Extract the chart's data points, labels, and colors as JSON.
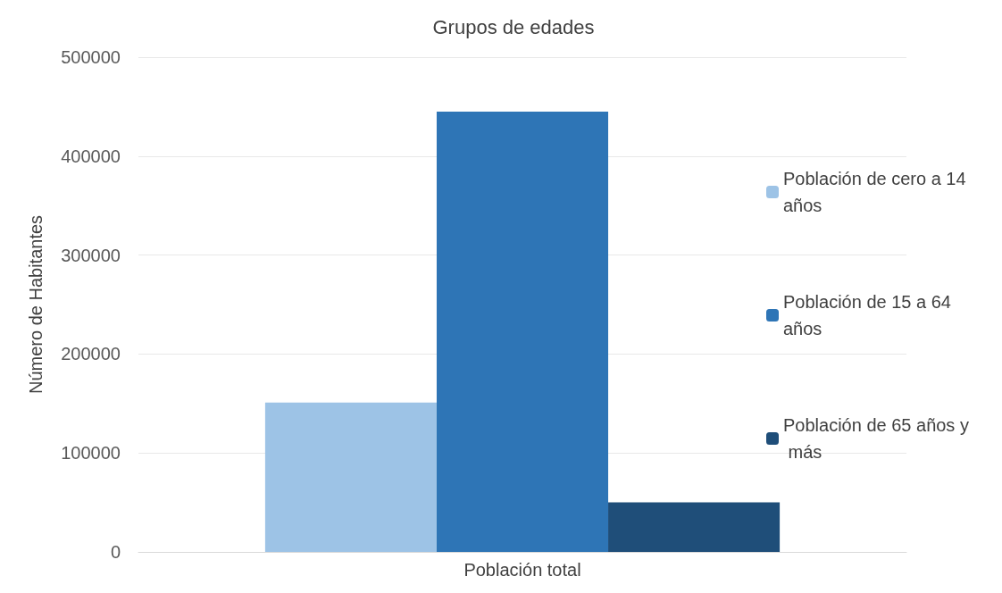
{
  "chart_data": {
    "type": "bar",
    "title": "Grupos de edades",
    "ylabel": "Número de Habitantes",
    "categories": [
      "Población total"
    ],
    "series": [
      {
        "name": "Población de cero a 14 años",
        "color": "#9dc3e6",
        "values": [
          151000
        ]
      },
      {
        "name": "Población de 15 a 64 años",
        "color": "#2e75b6",
        "values": [
          445000
        ]
      },
      {
        "name": "Población de 65 años y más",
        "color": "#1f4e79",
        "values": [
          50000
        ]
      }
    ],
    "ylim": [
      0,
      500000
    ],
    "yticks": [
      0,
      100000,
      200000,
      300000,
      400000,
      500000
    ],
    "grid": "y",
    "legend": "right"
  }
}
